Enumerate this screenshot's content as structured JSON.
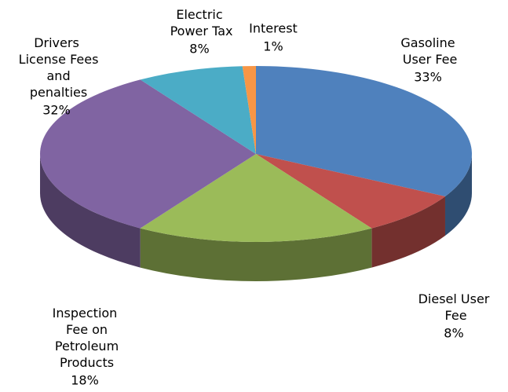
{
  "chart_data": {
    "type": "pie3d",
    "categories": [
      "Gasoline\nUser Fee",
      "Diesel User\nFee",
      "Inspection\nFee on\nPetroleum\nProducts",
      "Drivers\nLicense Fees\nand\npenalties",
      "Electric\nPower Tax",
      "Interest"
    ],
    "values": [
      33,
      8,
      18,
      32,
      8,
      1
    ],
    "value_labels": [
      "33%",
      "8%",
      "18%",
      "32%",
      "8%",
      "1%"
    ],
    "colors": [
      "#4f81bd",
      "#c0504d",
      "#9bbb59",
      "#8064a2",
      "#4bacc6",
      "#f79646"
    ]
  }
}
